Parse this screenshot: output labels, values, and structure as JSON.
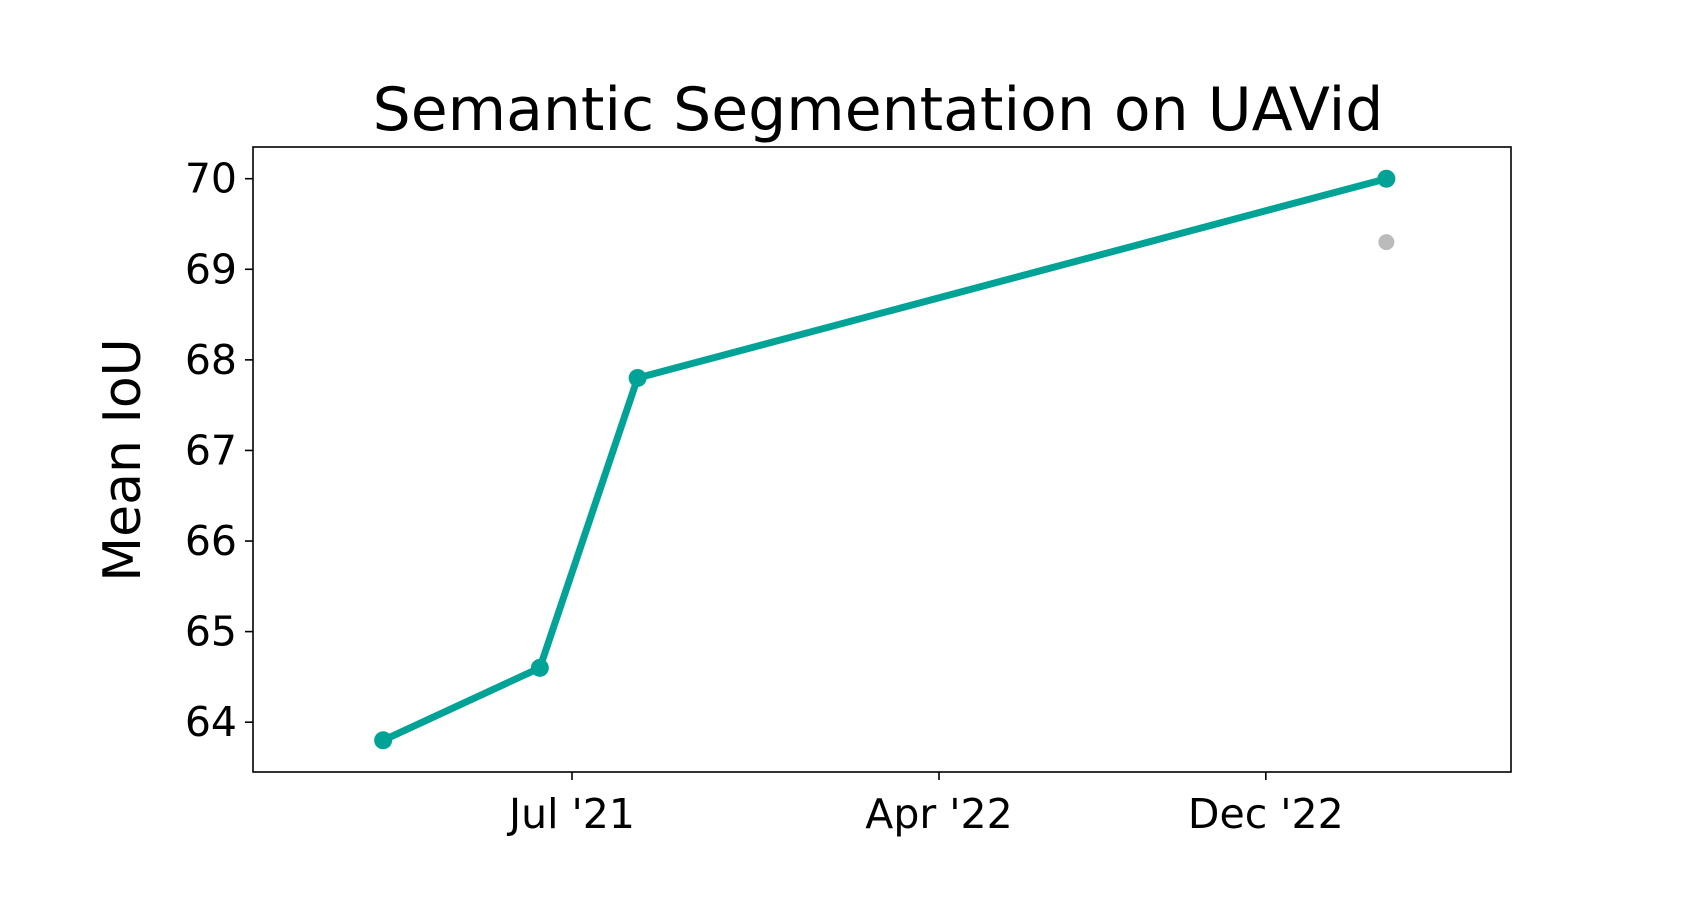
{
  "chart_data": {
    "type": "line",
    "title": "Semantic Segmentation on UAVid",
    "xlabel": "",
    "ylabel": "Mean IoU",
    "x_ticks": [
      "Jul '21",
      "Apr '22",
      "Dec '22"
    ],
    "y_ticks": [
      "64",
      "65",
      "66",
      "67",
      "68",
      "69",
      "70"
    ],
    "ylim": [
      63.45,
      70.35
    ],
    "grid": false,
    "series": [
      {
        "color": "#00a396",
        "points": [
          {
            "x": "2021-02-10",
            "y": 63.8
          },
          {
            "x": "2021-06-07",
            "y": 64.6
          },
          {
            "x": "2021-08-19",
            "y": 67.8
          },
          {
            "x": "2023-03-01",
            "y": 70.0
          }
        ]
      },
      {
        "color": "#bbbbbb",
        "points": [
          {
            "x": "2023-03-01",
            "y": 69.3
          }
        ]
      }
    ]
  }
}
